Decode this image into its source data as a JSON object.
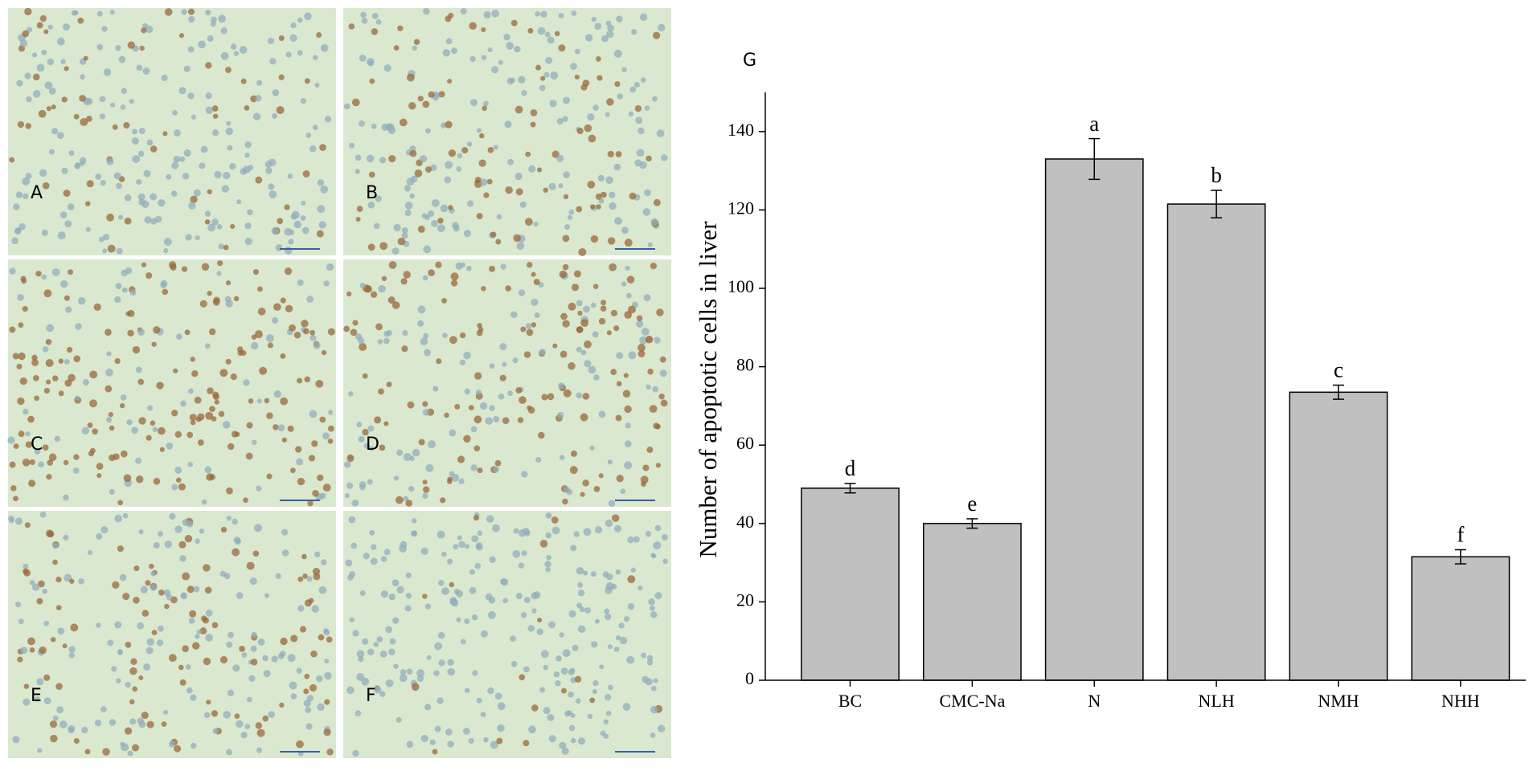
{
  "chart_data": {
    "type": "bar",
    "panel_label": "G",
    "y_label": "Number of apoptotic cells in liver",
    "categories": [
      "BC",
      "CMC-Na",
      "N",
      "NLH",
      "NMH",
      "NHH"
    ],
    "values": [
      49,
      40,
      133,
      121.5,
      73.5,
      31.5
    ],
    "errors": [
      1.2,
      1.2,
      5.2,
      3.5,
      1.8,
      1.8
    ],
    "annotations": [
      "d",
      "e",
      "a",
      "b",
      "c",
      "f"
    ],
    "color": "#c0c0c0",
    "ylim": [
      0,
      150
    ],
    "yticks": [
      0,
      20,
      40,
      60,
      80,
      100,
      120,
      140
    ]
  },
  "panels": {
    "labels": [
      "A",
      "B",
      "C",
      "D",
      "E",
      "F"
    ]
  }
}
